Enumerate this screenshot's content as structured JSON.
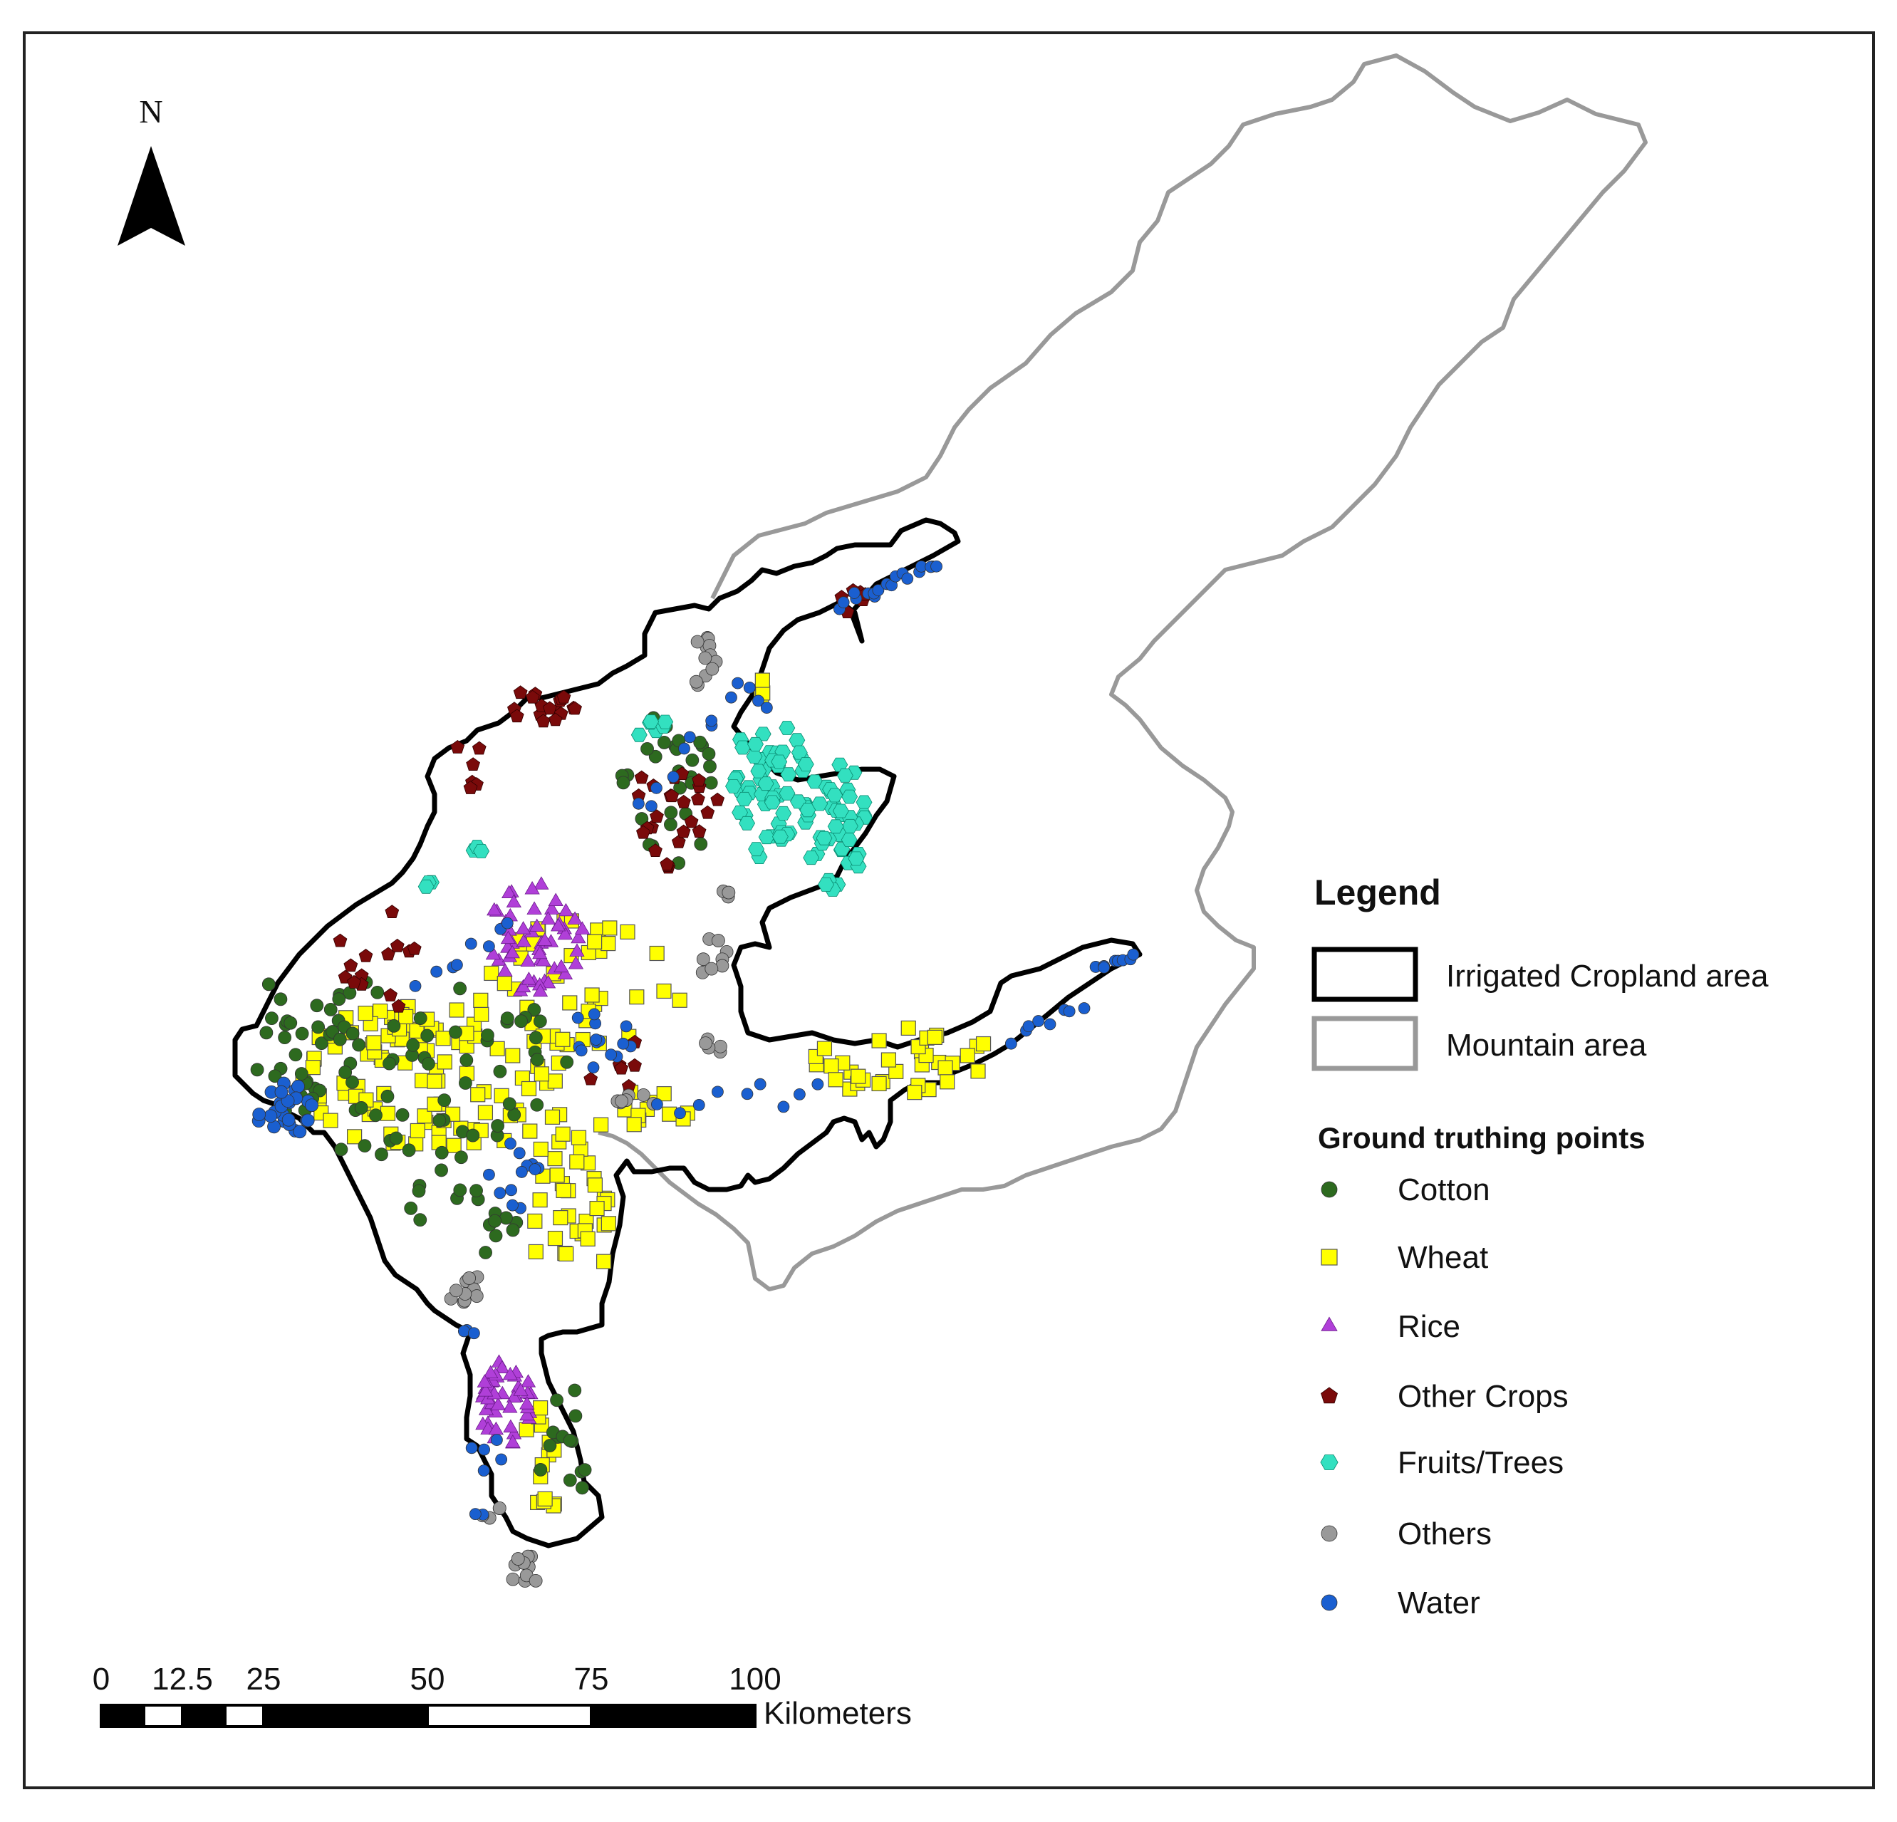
{
  "north_arrow": {
    "label": "N"
  },
  "legend": {
    "title": "Legend",
    "areas": [
      {
        "label": "Irrigated Cropland area",
        "stroke": "#000000"
      },
      {
        "label": "Mountain area",
        "stroke": "#999999"
      }
    ],
    "points_title": "Ground truthing points",
    "points": [
      {
        "label": "Cotton",
        "shape": "circle",
        "color": "#2d6a1f"
      },
      {
        "label": "Wheat",
        "shape": "square",
        "color": "#ffff00"
      },
      {
        "label": "Rice",
        "shape": "triangle",
        "color": "#b03fd8"
      },
      {
        "label": "Other Crops",
        "shape": "pentagon",
        "color": "#7a0a0a"
      },
      {
        "label": "Fruits/Trees",
        "shape": "hexagon",
        "color": "#33e0c0"
      },
      {
        "label": "Others",
        "shape": "circle",
        "color": "#999999"
      },
      {
        "label": "Water",
        "shape": "circle",
        "color": "#1a5fd0"
      }
    ]
  },
  "scale_bar": {
    "ticks": [
      "0",
      "12.5",
      "25",
      "50",
      "75",
      "100"
    ],
    "unit": "Kilometers"
  }
}
